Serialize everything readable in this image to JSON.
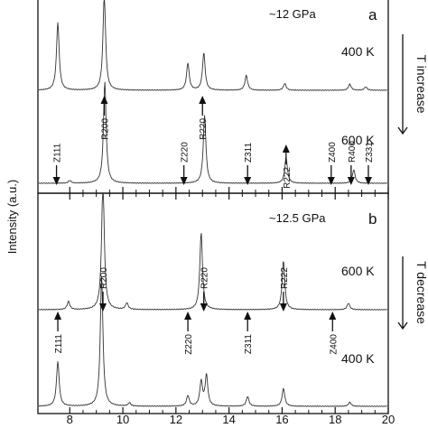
{
  "chart_data": {
    "type": "line",
    "ylabel": "Intensity (a.u.)",
    "x_ticks": [
      8,
      10,
      12,
      14,
      16,
      18,
      20
    ],
    "xlim": [
      6.8,
      20
    ],
    "panels": [
      {
        "id": "a",
        "label": "a",
        "pressure": "~12 GPa",
        "ramp_label": "T increase",
        "series": [
          {
            "name": "400 K",
            "peaks": [
              [
                7.55,
                1.0
              ],
              [
                9.3,
                1.4
              ],
              [
                12.45,
                0.4
              ],
              [
                13.05,
                0.55
              ],
              [
                14.65,
                0.22
              ],
              [
                16.1,
                0.1
              ],
              [
                18.55,
                0.09
              ],
              [
                19.15,
                0.05
              ]
            ]
          },
          {
            "name": "600 K",
            "peaks": [
              [
                8.0,
                0.04
              ],
              [
                9.32,
                1.5
              ],
              [
                13.08,
                1.0
              ],
              [
                16.15,
                0.38
              ],
              [
                18.7,
                0.2
              ]
            ]
          }
        ],
        "annotations": [
          {
            "text": "Z111",
            "x": 7.5,
            "dir": "down"
          },
          {
            "text": "R200",
            "x": 9.3,
            "dir": "up"
          },
          {
            "text": "R220",
            "x": 13.0,
            "dir": "up"
          },
          {
            "text": "Z220",
            "x": 12.3,
            "dir": "down"
          },
          {
            "text": "Z311",
            "x": 14.7,
            "dir": "down"
          },
          {
            "text": "R222",
            "x": 16.15,
            "dir": "up"
          },
          {
            "text": "Z400",
            "x": 17.85,
            "dir": "down"
          },
          {
            "text": "R400",
            "x": 18.6,
            "dir": "down"
          },
          {
            "text": "Z331",
            "x": 19.25,
            "dir": "down"
          }
        ]
      },
      {
        "id": "b",
        "label": "b",
        "pressure": "~12.5 GPa",
        "ramp_label": "T decrease",
        "series": [
          {
            "name": "600 K",
            "peaks": [
              [
                7.95,
                0.1
              ],
              [
                9.25,
                1.6
              ],
              [
                10.15,
                0.08
              ],
              [
                12.95,
                0.95
              ],
              [
                16.05,
                0.6
              ],
              [
                18.5,
                0.08
              ]
            ]
          },
          {
            "name": "400 K",
            "peaks": [
              [
                7.55,
                0.55
              ],
              [
                9.2,
                1.6
              ],
              [
                10.25,
                0.04
              ],
              [
                12.45,
                0.13
              ],
              [
                12.95,
                0.3
              ],
              [
                13.15,
                0.38
              ],
              [
                14.7,
                0.12
              ],
              [
                16.05,
                0.22
              ],
              [
                18.55,
                0.05
              ]
            ]
          }
        ],
        "annotations": [
          {
            "text": "Z111",
            "x": 7.55,
            "dir": "up"
          },
          {
            "text": "R200",
            "x": 9.25,
            "dir": "down"
          },
          {
            "text": "Z220",
            "x": 12.45,
            "dir": "up"
          },
          {
            "text": "R220",
            "x": 13.05,
            "dir": "down"
          },
          {
            "text": "Z311",
            "x": 14.7,
            "dir": "up"
          },
          {
            "text": "R222",
            "x": 16.05,
            "dir": "down"
          },
          {
            "text": "Z400",
            "x": 17.9,
            "dir": "up"
          }
        ]
      }
    ]
  }
}
